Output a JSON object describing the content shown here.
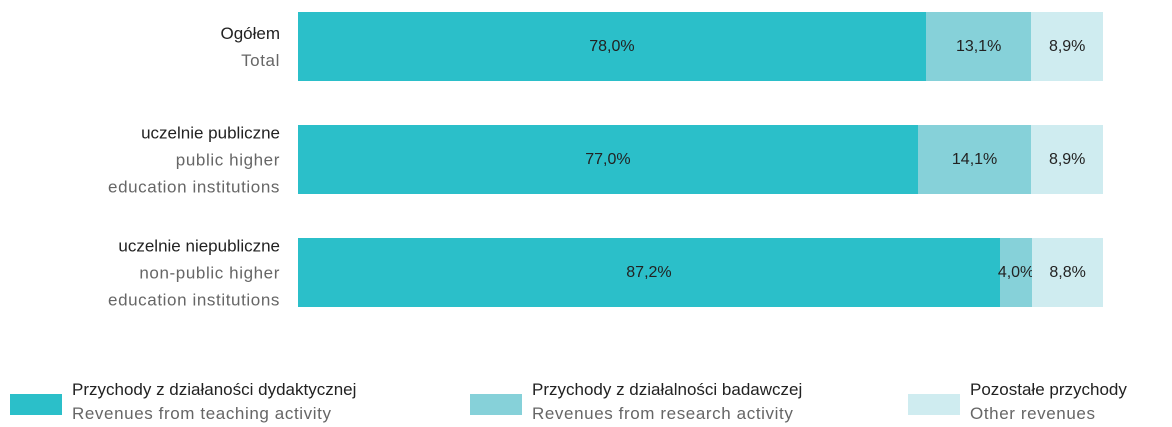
{
  "chart_data": {
    "type": "stacked_bar_horizontal",
    "categories": [
      "Ogółem",
      "uczelnie publiczne",
      "uczelnie niepubliczne"
    ],
    "categories_en": [
      "Total",
      "public higher\neducation institutions",
      "non-public higher\neducation institutions"
    ],
    "xlim": [
      0,
      100
    ],
    "series": [
      {
        "name": "Przychody z działaności dydaktycznej",
        "name_en": "Revenues from teaching activity",
        "color": "#2bbfc9",
        "values": [
          78.0,
          77.0,
          87.2
        ],
        "value_labels": [
          "78,0%",
          "77,0%",
          "87,2%"
        ]
      },
      {
        "name": "Przychody z działalności badawczej",
        "name_en": "Revenues from research activity",
        "color": "#86d1d9",
        "values": [
          13.1,
          14.1,
          4.0
        ],
        "value_labels": [
          "13,1%",
          "14,1%",
          "4,0%"
        ]
      },
      {
        "name": "Pozostałe przychody",
        "name_en": "Other revenues",
        "color": "#cfecf0",
        "values": [
          8.9,
          8.9,
          8.8
        ],
        "value_labels": [
          "8,9%",
          "8,9%",
          "8,8%"
        ]
      }
    ]
  }
}
